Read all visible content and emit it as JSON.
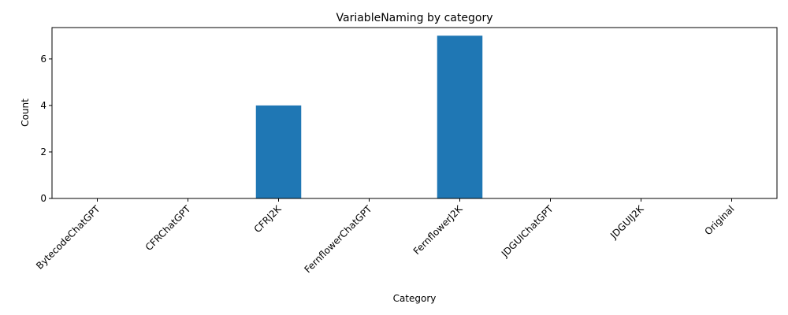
{
  "chart_data": {
    "type": "bar",
    "title": "VariableNaming by category",
    "xlabel": "Category",
    "ylabel": "Count",
    "categories": [
      "BytecodeChatGPT",
      "CFRChatGPT",
      "CFRJ2K",
      "FernflowerChatGPT",
      "FernflowerJ2K",
      "JDGUIChatGPT",
      "JDGUIJ2K",
      "Original"
    ],
    "values": [
      0,
      0,
      4,
      0,
      7,
      0,
      0,
      0
    ],
    "ylim": [
      0,
      7.35
    ],
    "yticks": [
      0,
      2,
      4,
      6
    ],
    "grid": false,
    "bar_color": "#1f77b4"
  }
}
